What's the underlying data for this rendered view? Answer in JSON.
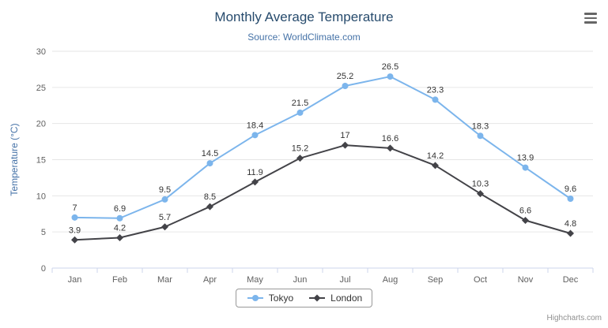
{
  "chart_data": {
    "type": "line",
    "title": "Monthly Average Temperature",
    "subtitle": "Source: WorldClimate.com",
    "categories": [
      "Jan",
      "Feb",
      "Mar",
      "Apr",
      "May",
      "Jun",
      "Jul",
      "Aug",
      "Sep",
      "Oct",
      "Nov",
      "Dec"
    ],
    "series": [
      {
        "name": "Tokyo",
        "color": "#7cb5ec",
        "marker": "circle",
        "values": [
          7,
          6.9,
          9.5,
          14.5,
          18.4,
          21.5,
          25.2,
          26.5,
          23.3,
          18.3,
          13.9,
          9.6
        ]
      },
      {
        "name": "London",
        "color": "#434348",
        "marker": "diamond",
        "values": [
          3.9,
          4.2,
          5.7,
          8.5,
          11.9,
          15.2,
          17,
          16.6,
          14.2,
          10.3,
          6.6,
          4.8
        ]
      }
    ],
    "xlabel": "",
    "ylabel": "Temperature (°C)",
    "ylim": [
      0,
      30
    ],
    "yticks": [
      0,
      5,
      10,
      15,
      20,
      25,
      30
    ],
    "grid": "horizontal",
    "legend_position": "bottom",
    "data_labels": true
  },
  "credits": "Highcharts.com",
  "icons": {
    "menu": "hamburger-menu"
  },
  "colors": {
    "title": "#274b6d",
    "subtitle": "#4572a7",
    "grid": "#e6e6e6",
    "axis_line": "#ccd6eb",
    "axis_label": "#606060",
    "tokyo": "#7cb5ec",
    "london": "#434348"
  }
}
